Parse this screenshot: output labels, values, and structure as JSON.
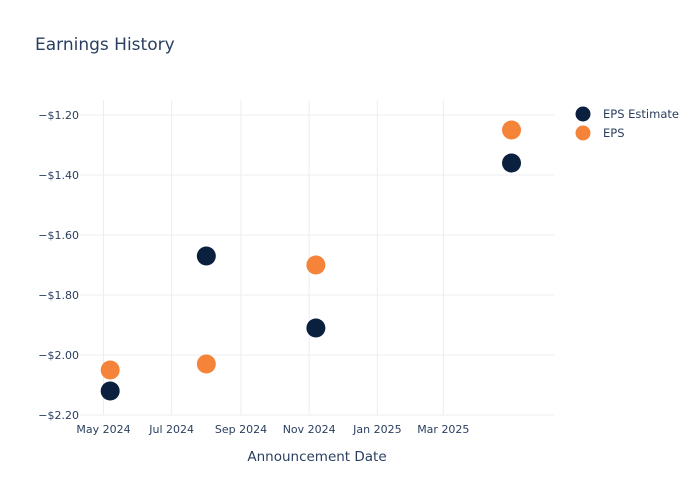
{
  "chart_data": {
    "type": "scatter",
    "title": "Earnings History",
    "xlabel": "Announcement Date",
    "ylabel": "",
    "x_type": "date",
    "xlim": [
      "2024-04-10",
      "2025-06-08"
    ],
    "ylim": [
      -2.2,
      -1.15
    ],
    "x_ticks": [
      {
        "value": "2024-05-01",
        "label": "May 2024"
      },
      {
        "value": "2024-07-01",
        "label": "Jul 2024"
      },
      {
        "value": "2024-09-01",
        "label": "Sep 2024"
      },
      {
        "value": "2024-11-01",
        "label": "Nov 2024"
      },
      {
        "value": "2025-01-01",
        "label": "Jan 2025"
      },
      {
        "value": "2025-03-01",
        "label": "Mar 2025"
      }
    ],
    "y_ticks": [
      {
        "value": -1.2,
        "label": "−$1.20"
      },
      {
        "value": -1.4,
        "label": "−$1.40"
      },
      {
        "value": -1.6,
        "label": "−$1.60"
      },
      {
        "value": -1.8,
        "label": "−$1.80"
      },
      {
        "value": -2.0,
        "label": "−$2.00"
      },
      {
        "value": -2.2,
        "label": "−$2.20"
      }
    ],
    "grid": true,
    "legend_position": "top-right",
    "series": [
      {
        "name": "EPS Estimate",
        "color": "#0b1f3f",
        "points": [
          {
            "x": "2024-05-07",
            "y": -2.12
          },
          {
            "x": "2024-08-01",
            "y": -1.67
          },
          {
            "x": "2024-11-07",
            "y": -1.91
          },
          {
            "x": "2025-05-01",
            "y": -1.36
          }
        ]
      },
      {
        "name": "EPS",
        "color": "#f5843a",
        "points": [
          {
            "x": "2024-05-07",
            "y": -2.05
          },
          {
            "x": "2024-08-01",
            "y": -2.03
          },
          {
            "x": "2024-11-07",
            "y": -1.7
          },
          {
            "x": "2025-05-01",
            "y": -1.25
          }
        ]
      }
    ]
  }
}
